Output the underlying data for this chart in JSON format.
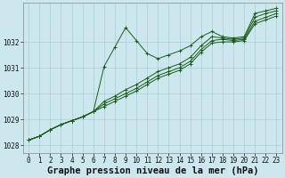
{
  "background_color": "#cce8ee",
  "grid_color": "#aacdd4",
  "line_color": "#1a5c1a",
  "xlabel": "Graphe pression niveau de la mer (hPa)",
  "xlabel_fontsize": 7.5,
  "xlim": [
    -0.5,
    23.5
  ],
  "ylim": [
    1027.7,
    1033.5
  ],
  "yticks": [
    1028,
    1029,
    1030,
    1031,
    1032
  ],
  "xticks": [
    0,
    1,
    2,
    3,
    4,
    5,
    6,
    7,
    8,
    9,
    10,
    11,
    12,
    13,
    14,
    15,
    16,
    17,
    18,
    19,
    20,
    21,
    22,
    23
  ],
  "tick_fontsize": 5.5,
  "series": [
    [
      1028.2,
      1028.35,
      1028.6,
      1028.8,
      1028.95,
      1029.1,
      1029.3,
      1031.05,
      1031.8,
      1032.55,
      1032.05,
      1031.55,
      1031.35,
      1031.5,
      1031.65,
      1031.85,
      1032.2,
      1032.4,
      1032.2,
      1032.15,
      1032.2,
      1033.1,
      1033.2,
      1033.3
    ],
    [
      1028.2,
      1028.35,
      1028.6,
      1028.8,
      1028.95,
      1029.1,
      1029.3,
      1029.7,
      1029.9,
      1030.15,
      1030.35,
      1030.6,
      1030.85,
      1031.0,
      1031.15,
      1031.4,
      1031.85,
      1032.2,
      1032.15,
      1032.1,
      1032.15,
      1032.95,
      1033.1,
      1033.2
    ],
    [
      1028.2,
      1028.35,
      1028.6,
      1028.8,
      1028.95,
      1029.1,
      1029.3,
      1029.6,
      1029.8,
      1030.0,
      1030.2,
      1030.45,
      1030.7,
      1030.85,
      1031.0,
      1031.25,
      1031.7,
      1032.05,
      1032.1,
      1032.05,
      1032.1,
      1032.8,
      1032.95,
      1033.1
    ],
    [
      1028.2,
      1028.35,
      1028.6,
      1028.8,
      1028.95,
      1029.1,
      1029.3,
      1029.5,
      1029.7,
      1029.9,
      1030.1,
      1030.35,
      1030.6,
      1030.75,
      1030.9,
      1031.15,
      1031.6,
      1031.95,
      1032.0,
      1032.0,
      1032.05,
      1032.7,
      1032.85,
      1033.0
    ]
  ]
}
